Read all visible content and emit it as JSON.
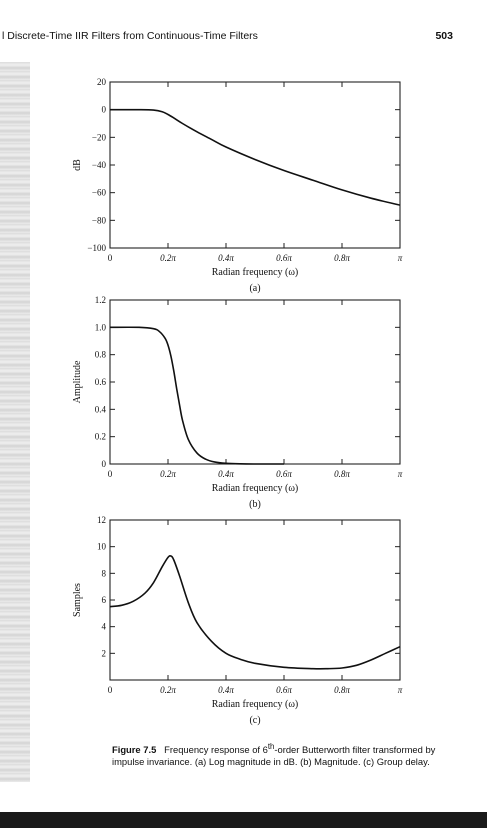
{
  "header": {
    "section_title": "l Discrete-Time IIR Filters from Continuous-Time Filters",
    "page_number": "503"
  },
  "caption": {
    "figure_label": "Figure 7.5",
    "pre_sup": "Frequency response of 6",
    "sup": "th",
    "post_sup": "-order Butterworth filter transformed by impulse invariance. (a) Log magnitude in dB. (b) Magnitude. (c) Group delay."
  },
  "chart_data": [
    {
      "type": "line",
      "sublabel": "(a)",
      "xlabel": "Radian frequency (ω)",
      "ylabel": "dB",
      "xlim": [
        0,
        1
      ],
      "ylim": [
        -100,
        20
      ],
      "x_ticks": [
        0,
        0.2,
        0.4,
        0.6,
        0.8,
        1.0
      ],
      "x_tick_labels": [
        "0",
        "0.2π",
        "0.4π",
        "0.6π",
        "0.8π",
        "π"
      ],
      "y_ticks": [
        20,
        0,
        -20,
        -40,
        -60,
        -80,
        -100
      ],
      "y_tick_labels": [
        "20",
        "0",
        "−20",
        "−40",
        "−60",
        "−80",
        "−100"
      ],
      "series": [
        {
          "x": [
            0,
            0.1,
            0.15,
            0.18,
            0.2,
            0.22,
            0.25,
            0.3,
            0.35,
            0.4,
            0.5,
            0.6,
            0.7,
            0.8,
            0.9,
            1.0
          ],
          "y": [
            0,
            0,
            -0.3,
            -1.5,
            -3.5,
            -6,
            -10,
            -16,
            -21.5,
            -27,
            -36,
            -44,
            -51,
            -58,
            -64,
            -69
          ]
        }
      ]
    },
    {
      "type": "line",
      "sublabel": "(b)",
      "xlabel": "Radian frequency (ω)",
      "ylabel": "Amplitude",
      "xlim": [
        0,
        1
      ],
      "ylim": [
        0,
        1.2
      ],
      "x_ticks": [
        0,
        0.2,
        0.4,
        0.6,
        0.8,
        1.0
      ],
      "x_tick_labels": [
        "0",
        "0.2π",
        "0.4π",
        "0.6π",
        "0.8π",
        "π"
      ],
      "y_ticks": [
        0,
        0.2,
        0.4,
        0.6,
        0.8,
        1.0,
        1.2
      ],
      "y_tick_labels": [
        "0",
        "0.2",
        "0.4",
        "0.6",
        "0.8",
        "1.0",
        "1.2"
      ],
      "series": [
        {
          "x": [
            0,
            0.1,
            0.15,
            0.17,
            0.19,
            0.2,
            0.21,
            0.22,
            0.23,
            0.24,
            0.25,
            0.27,
            0.3,
            0.33,
            0.36,
            0.4,
            0.45,
            0.5,
            0.6
          ],
          "y": [
            1.0,
            1.0,
            0.99,
            0.97,
            0.92,
            0.87,
            0.79,
            0.68,
            0.55,
            0.43,
            0.32,
            0.18,
            0.08,
            0.035,
            0.015,
            0.005,
            0.001,
            0,
            0
          ]
        }
      ]
    },
    {
      "type": "line",
      "sublabel": "(c)",
      "xlabel": "Radian frequency (ω)",
      "ylabel": "Samples",
      "xlim": [
        0,
        1
      ],
      "ylim": [
        0,
        12
      ],
      "x_ticks": [
        0,
        0.2,
        0.4,
        0.6,
        0.8,
        1.0
      ],
      "x_tick_labels": [
        "0",
        "0.2π",
        "0.4π",
        "0.6π",
        "0.8π",
        "π"
      ],
      "y_ticks": [
        2,
        4,
        6,
        8,
        10,
        12
      ],
      "y_tick_labels": [
        "2",
        "4",
        "6",
        "8",
        "10",
        "12"
      ],
      "series": [
        {
          "x": [
            0,
            0.04,
            0.08,
            0.12,
            0.15,
            0.18,
            0.2,
            0.21,
            0.22,
            0.24,
            0.27,
            0.3,
            0.35,
            0.4,
            0.45,
            0.5,
            0.6,
            0.7,
            0.75,
            0.8,
            0.85,
            0.9,
            0.95,
            1.0
          ],
          "y": [
            5.5,
            5.6,
            5.9,
            6.5,
            7.3,
            8.5,
            9.2,
            9.3,
            9.0,
            7.8,
            5.8,
            4.3,
            2.9,
            2.0,
            1.55,
            1.25,
            0.95,
            0.85,
            0.85,
            0.9,
            1.1,
            1.5,
            2.0,
            2.5
          ]
        }
      ]
    }
  ]
}
